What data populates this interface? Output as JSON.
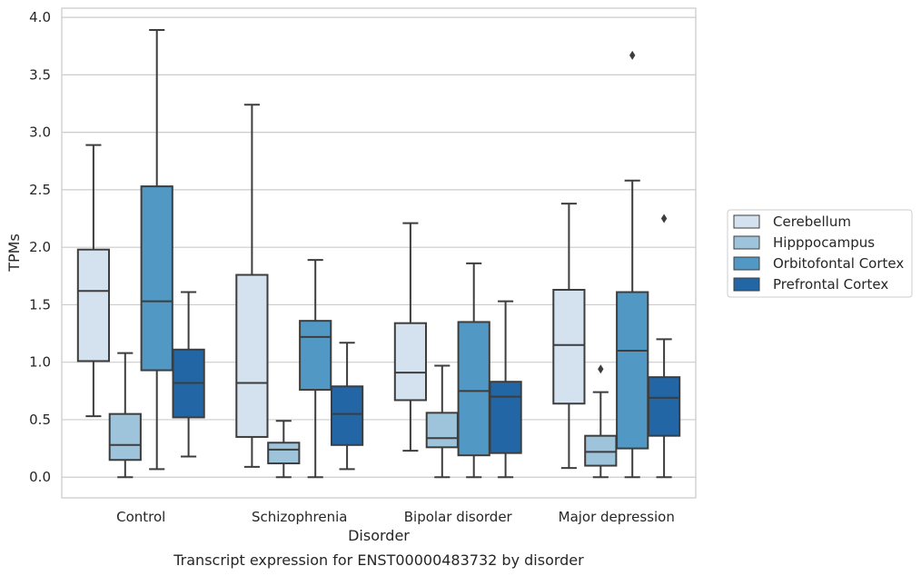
{
  "chart_data": {
    "type": "box",
    "title": "",
    "caption": "Transcript expression for ENST00000483732 by disorder",
    "xlabel": "Disorder",
    "ylabel": "TPMs",
    "ylim": [
      -0.18,
      4.08
    ],
    "yticks": [
      "0.0",
      "0.5",
      "1.0",
      "1.5",
      "2.0",
      "2.5",
      "3.0",
      "3.5",
      "4.0"
    ],
    "grid": "horizontal",
    "legend_position": "right",
    "categories": [
      "Control",
      "Schizophrenia",
      "Bipolar disorder",
      "Major depression"
    ],
    "series": [
      {
        "name": "Cerebellum",
        "color": "#d4e2f0",
        "boxes": [
          {
            "whisker_low": 0.53,
            "q1": 1.01,
            "median": 1.62,
            "q3": 1.98,
            "whisker_high": 2.89,
            "outliers": []
          },
          {
            "whisker_low": 0.09,
            "q1": 0.35,
            "median": 0.82,
            "q3": 1.76,
            "whisker_high": 3.24,
            "outliers": []
          },
          {
            "whisker_low": 0.23,
            "q1": 0.67,
            "median": 0.91,
            "q3": 1.34,
            "whisker_high": 2.21,
            "outliers": []
          },
          {
            "whisker_low": 0.08,
            "q1": 0.64,
            "median": 1.15,
            "q3": 1.63,
            "whisker_high": 2.38,
            "outliers": []
          }
        ]
      },
      {
        "name": "Hipppocampus",
        "color": "#9ec4dc",
        "boxes": [
          {
            "whisker_low": 0.0,
            "q1": 0.15,
            "median": 0.28,
            "q3": 0.55,
            "whisker_high": 1.08,
            "outliers": []
          },
          {
            "whisker_low": 0.0,
            "q1": 0.12,
            "median": 0.24,
            "q3": 0.3,
            "whisker_high": 0.49,
            "outliers": []
          },
          {
            "whisker_low": 0.0,
            "q1": 0.26,
            "median": 0.34,
            "q3": 0.56,
            "whisker_high": 0.97,
            "outliers": []
          },
          {
            "whisker_low": 0.0,
            "q1": 0.1,
            "median": 0.22,
            "q3": 0.36,
            "whisker_high": 0.74,
            "outliers": [
              0.94
            ]
          }
        ]
      },
      {
        "name": "Orbitofontal Cortex",
        "color": "#5198c4",
        "boxes": [
          {
            "whisker_low": 0.07,
            "q1": 0.93,
            "median": 1.53,
            "q3": 2.53,
            "whisker_high": 3.89,
            "outliers": []
          },
          {
            "whisker_low": 0.0,
            "q1": 0.76,
            "median": 1.22,
            "q3": 1.36,
            "whisker_high": 1.89,
            "outliers": []
          },
          {
            "whisker_low": 0.0,
            "q1": 0.19,
            "median": 0.75,
            "q3": 1.35,
            "whisker_high": 1.86,
            "outliers": []
          },
          {
            "whisker_low": 0.0,
            "q1": 0.25,
            "median": 1.1,
            "q3": 1.61,
            "whisker_high": 2.58,
            "outliers": [
              3.67
            ]
          }
        ]
      },
      {
        "name": "Prefrontal Cortex",
        "color": "#2266a6",
        "boxes": [
          {
            "whisker_low": 0.18,
            "q1": 0.52,
            "median": 0.82,
            "q3": 1.11,
            "whisker_high": 1.61,
            "outliers": []
          },
          {
            "whisker_low": 0.07,
            "q1": 0.28,
            "median": 0.55,
            "q3": 0.79,
            "whisker_high": 1.17,
            "outliers": []
          },
          {
            "whisker_low": 0.0,
            "q1": 0.21,
            "median": 0.7,
            "q3": 0.83,
            "whisker_high": 1.53,
            "outliers": []
          },
          {
            "whisker_low": 0.0,
            "q1": 0.36,
            "median": 0.69,
            "q3": 0.87,
            "whisker_high": 1.2,
            "outliers": [
              2.25
            ]
          }
        ]
      }
    ]
  }
}
